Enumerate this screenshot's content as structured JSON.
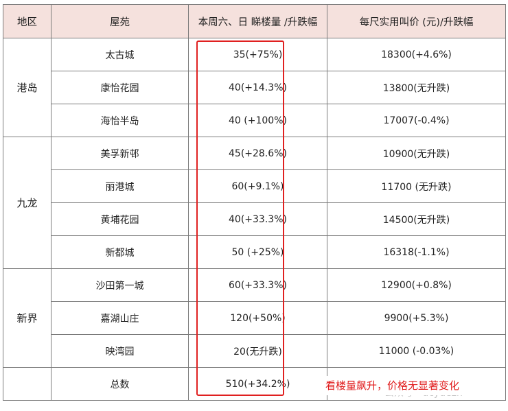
{
  "headers": [
    "地区",
    "屋苑",
    "本周六、日 睇楼量 /升跌幅",
    "每尺实用叫价 (元)/升跌幅"
  ],
  "regions": [
    {
      "name": "港岛",
      "rows": [
        {
          "estate": "太古城",
          "viewings": "35(+75%)",
          "price": "18300(+4.6%)"
        },
        {
          "estate": "康怡花园",
          "viewings": "40(+14.3%)",
          "price": "13800(无升跌)"
        },
        {
          "estate": "海怡半岛",
          "viewings": "40 (+100%)",
          "price": "17007(-0.4%)"
        }
      ]
    },
    {
      "name": "九龙",
      "rows": [
        {
          "estate": "美孚新邨",
          "viewings": "45(+28.6%)",
          "price": "10900(无升跌)"
        },
        {
          "estate": "丽港城",
          "viewings": "60(+9.1%)",
          "price": "11700 (无升跌)"
        },
        {
          "estate": "黄埔花园",
          "viewings": "40(+33.3%)",
          "price": "14500(无升跌)"
        },
        {
          "estate": "新都城",
          "viewings": "50 (+25%)",
          "price": "16318(-1.1%)"
        }
      ]
    },
    {
      "name": "新界",
      "rows": [
        {
          "estate": "沙田第一城",
          "viewings": "60(+33.3%)",
          "price": "12900(+0.8%)"
        },
        {
          "estate": "嘉湖山庄",
          "viewings": "120(+50%)",
          "price": "9900(+5.3%)"
        },
        {
          "estate": "映湾园",
          "viewings": "20(无升跌)",
          "price": "11000 (-0.03%)"
        }
      ]
    }
  ],
  "total": {
    "label": "总数",
    "viewings": "510(+34.2%)"
  },
  "caption": "看楼量飙升，价格无显著变化",
  "watermark": "公众号 · dcyuezh",
  "colors": {
    "header_bg": "#f5e1dd",
    "highlight": "#e02020",
    "caption": "#e0191a"
  }
}
